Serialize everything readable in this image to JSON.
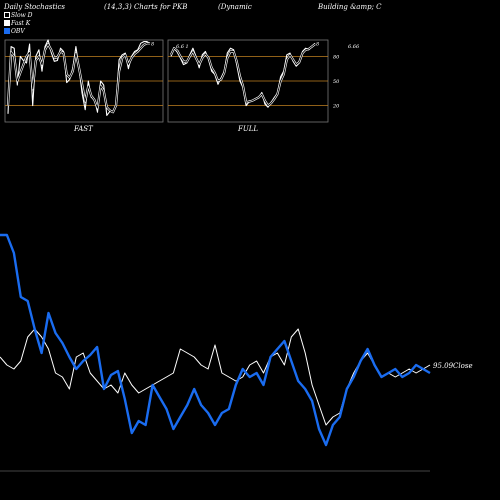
{
  "header": {
    "left": "Daily Stochastics",
    "params": "(14,3,3) Charts for PKB",
    "company_a": "(Dynamic",
    "company_b": "Building &amp; C"
  },
  "legend": {
    "slow_d": "Slow D",
    "fast_k": "Fast K",
    "obv": "OBV",
    "slow_d_color": "#ffffff",
    "fast_k_color": "#ffffff",
    "obv_color": "#1a6cf0"
  },
  "chart_data": [
    {
      "type": "line",
      "title": "FAST",
      "y_ticks": [
        "80",
        "50",
        "20"
      ],
      "ylim": [
        0,
        100
      ],
      "grid_lines": [
        80,
        50,
        20
      ],
      "grid_color": "#c08020",
      "end_label": "8",
      "series": [
        {
          "values": [
            10,
            92,
            90,
            45,
            80,
            75,
            72,
            95,
            20,
            80,
            88,
            62,
            92,
            100,
            85,
            74,
            75,
            90,
            86,
            48,
            52,
            66,
            92,
            66,
            35,
            15,
            50,
            30,
            28,
            12,
            50,
            45,
            8,
            13,
            12,
            22,
            76,
            82,
            84,
            65,
            80,
            86,
            88,
            96,
            98,
            98,
            96
          ]
        },
        {
          "values": [
            20,
            85,
            80,
            50,
            60,
            70,
            80,
            85,
            40,
            75,
            80,
            70,
            88,
            95,
            88,
            78,
            79,
            86,
            84,
            58,
            54,
            62,
            84,
            66,
            46,
            25,
            44,
            32,
            27,
            17,
            44,
            38,
            18,
            14,
            12,
            20,
            62,
            78,
            82,
            70,
            78,
            83,
            86,
            90,
            94,
            96,
            96
          ]
        }
      ]
    },
    {
      "type": "line",
      "title": "FULL",
      "y_ticks": [
        "80",
        "50",
        "20"
      ],
      "ylim": [
        0,
        100
      ],
      "grid_lines": [
        80,
        50,
        20
      ],
      "grid_color": "#c08020",
      "top_label": "6.6 1",
      "end_label": "8",
      "side_value": "6.66",
      "series": [
        {
          "values": [
            80,
            90,
            85,
            78,
            70,
            72,
            82,
            90,
            80,
            66,
            82,
            86,
            76,
            62,
            58,
            46,
            54,
            62,
            84,
            90,
            88,
            70,
            50,
            42,
            20,
            25,
            26,
            28,
            30,
            36,
            22,
            18,
            24,
            30,
            35,
            55,
            62,
            82,
            84,
            74,
            68,
            72,
            86,
            90,
            88,
            92,
            96
          ]
        },
        {
          "values": [
            82,
            90,
            87,
            80,
            74,
            73,
            80,
            86,
            78,
            70,
            78,
            83,
            78,
            66,
            60,
            50,
            52,
            60,
            78,
            86,
            86,
            74,
            56,
            44,
            24,
            25,
            26,
            28,
            30,
            34,
            26,
            20,
            23,
            28,
            34,
            50,
            58,
            76,
            82,
            76,
            70,
            73,
            84,
            88,
            89,
            92,
            95
          ]
        }
      ]
    },
    {
      "type": "line",
      "title": "",
      "end_label": "95.09Close",
      "series": [
        {
          "name": "Close",
          "color": "#ffffff",
          "values": [
            54,
            50,
            48,
            52,
            64,
            68,
            64,
            58,
            46,
            44,
            38,
            54,
            56,
            46,
            42,
            38,
            40,
            36,
            46,
            40,
            36,
            38,
            40,
            42,
            44,
            46,
            58,
            56,
            54,
            50,
            48,
            60,
            46,
            44,
            42,
            44,
            50,
            52,
            46,
            54,
            56,
            50,
            64,
            68,
            56,
            40,
            30,
            20,
            24,
            26,
            38,
            46,
            52,
            56,
            50,
            44,
            46,
            44,
            46,
            48,
            46,
            48,
            50
          ]
        },
        {
          "name": "OBV",
          "color": "#1a6cf0",
          "values": [
            115,
            115,
            106,
            84,
            82,
            68,
            56,
            76,
            66,
            61,
            54,
            48,
            52,
            55,
            59,
            38,
            45,
            47,
            33,
            16,
            22,
            20,
            40,
            34,
            28,
            18,
            24,
            30,
            38,
            30,
            26,
            20,
            26,
            28,
            40,
            48,
            44,
            46,
            40,
            54,
            58,
            62,
            52,
            42,
            38,
            32,
            18,
            10,
            20,
            24,
            38,
            44,
            52,
            58,
            50,
            44,
            46,
            48,
            44,
            46,
            50,
            48,
            46
          ]
        }
      ]
    }
  ]
}
